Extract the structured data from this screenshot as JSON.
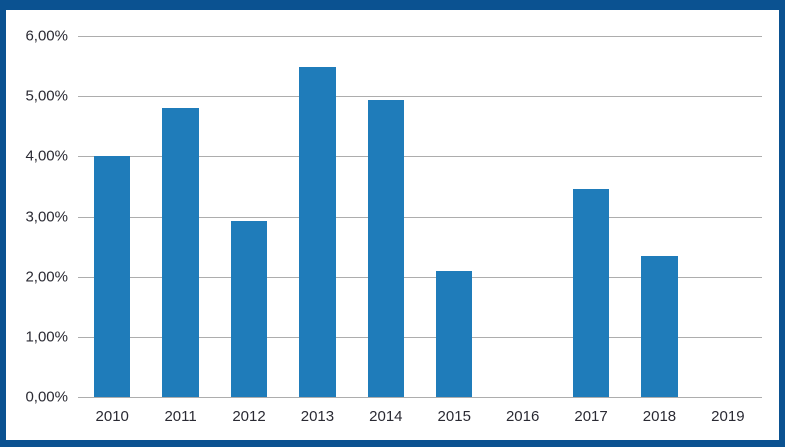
{
  "chart_data": {
    "type": "bar",
    "categories": [
      "2010",
      "2011",
      "2012",
      "2013",
      "2014",
      "2015",
      "2016",
      "2017",
      "2018",
      "2019"
    ],
    "values": [
      4.0,
      4.8,
      2.93,
      5.48,
      4.93,
      2.1,
      0,
      3.45,
      2.35,
      0
    ],
    "title": "",
    "xlabel": "",
    "ylabel": "",
    "ylim": [
      0,
      6
    ],
    "ytick_step": 1,
    "ytick_labels_bottom_to_top": [
      "0,00%",
      "1,00%",
      "2,00%",
      "3,00%",
      "4,00%",
      "5,00%",
      "6,00%"
    ],
    "decimal_separator": ",",
    "grid": "horizontal",
    "legend": "none",
    "colors": {
      "bar": "#1F7CBA",
      "frame_border": "#0B5291",
      "gridline": "#ADADAD",
      "tick_label_text": "#2A2A33",
      "background": "#FFFFFF"
    }
  }
}
